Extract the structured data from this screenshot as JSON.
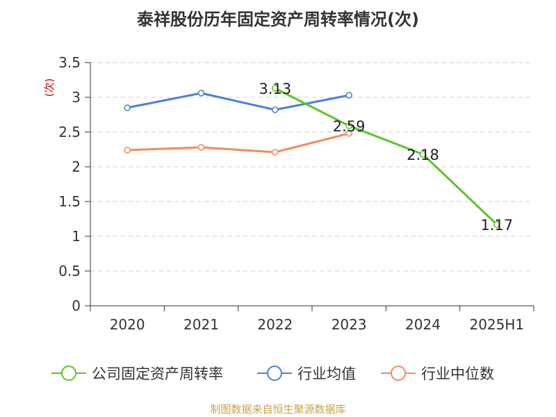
{
  "title": "泰祥股份历年固定资产周转率情况(次)",
  "source": "制图数据来自恒生聚源数据库",
  "chart_data": {
    "type": "line",
    "categories": [
      "2020",
      "2021",
      "2022",
      "2023",
      "2024",
      "2025H1"
    ],
    "ylabel": "(次)",
    "ylim": [
      0,
      3.5
    ],
    "yticks": [
      "0",
      "0.5",
      "1",
      "1.5",
      "2",
      "2.5",
      "3",
      "3.5"
    ],
    "grid": true,
    "legend_position": "bottom",
    "series": [
      {
        "name": "公司固定资产周转率",
        "color": "#5cc52a",
        "values": [
          null,
          null,
          3.13,
          2.59,
          2.18,
          1.17
        ],
        "labels": [
          "",
          "",
          "3.13",
          "2.59",
          "2.18",
          "1.17"
        ]
      },
      {
        "name": "行业均值",
        "color": "#4b7fdb",
        "values": [
          2.85,
          3.06,
          2.82,
          3.03,
          null,
          null
        ]
      },
      {
        "name": "行业中位数",
        "color": "#f28c5a",
        "values": [
          2.24,
          2.28,
          2.21,
          2.48,
          null,
          null
        ]
      }
    ]
  }
}
